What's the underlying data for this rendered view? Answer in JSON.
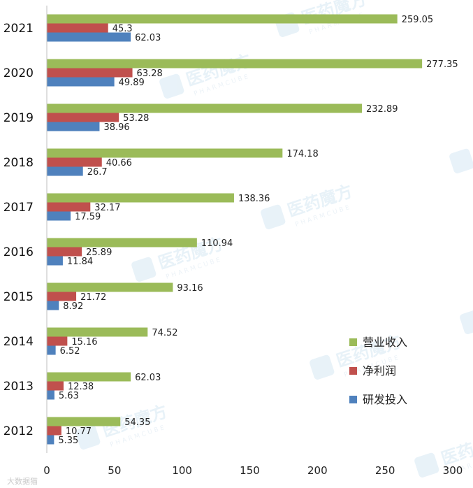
{
  "chart_data": {
    "type": "bar",
    "orientation": "horizontal",
    "categories": [
      "2021",
      "2020",
      "2019",
      "2018",
      "2017",
      "2016",
      "2015",
      "2014",
      "2013",
      "2012"
    ],
    "series": [
      {
        "name": "营业收入",
        "color": "#9bbb59",
        "values": [
          259.05,
          277.35,
          232.89,
          174.18,
          138.36,
          110.94,
          93.16,
          74.52,
          62.03,
          54.35
        ]
      },
      {
        "name": "净利润",
        "color": "#c0504d",
        "values": [
          45.3,
          63.28,
          53.28,
          40.66,
          32.17,
          25.89,
          21.72,
          15.16,
          12.38,
          10.77
        ]
      },
      {
        "name": "研发投入",
        "color": "#4f81bd",
        "values": [
          62.03,
          49.89,
          38.96,
          26.7,
          17.59,
          11.84,
          8.92,
          6.52,
          5.63,
          5.35
        ]
      }
    ],
    "value_labels": [
      [
        "259.05",
        "277.35",
        "232.89",
        "174.18",
        "138.36",
        "110.94",
        "93.16",
        "74.52",
        "62.03",
        "54.35"
      ],
      [
        "45.3",
        "63.28",
        "53.28",
        "40.66",
        "32.17",
        "25.89",
        "21.72",
        "15.16",
        "12.38",
        "10.77"
      ],
      [
        "62.03",
        "49.89",
        "38.96",
        "26.7",
        "17.59",
        "11.84",
        "8.92",
        "6.52",
        "5.63",
        "5.35"
      ]
    ],
    "x_ticks": [
      "0",
      "50",
      "100",
      "150",
      "200",
      "250",
      "300"
    ],
    "xlim": [
      0,
      300
    ],
    "title": "",
    "xlabel": "",
    "ylabel": "",
    "grid": false,
    "legend_position": "bottom-right"
  },
  "watermark": {
    "brand": "医药魔方",
    "brand_en": "PHARMCUBE",
    "corner": "大数据猫"
  }
}
